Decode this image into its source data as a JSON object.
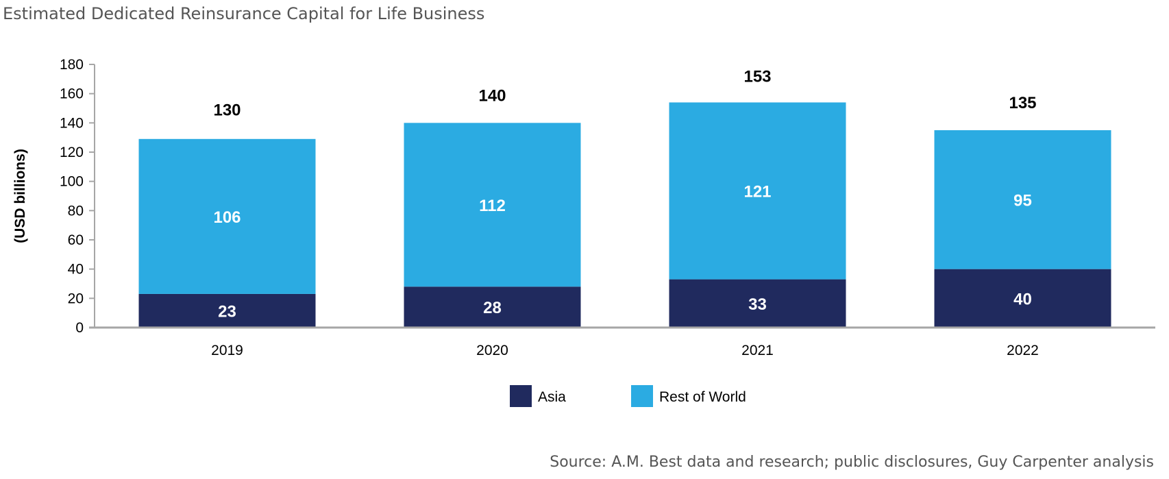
{
  "header": {
    "title": "Estimated Dedicated Reinsurance Capital for Life Business"
  },
  "footer": {
    "source": "Source: A.M. Best data and research; public disclosures, Guy Carpenter analysis"
  },
  "chart_data": {
    "type": "bar",
    "stacked": true,
    "categories": [
      "2019",
      "2020",
      "2021",
      "2022"
    ],
    "series": [
      {
        "name": "Asia",
        "values": [
          23,
          28,
          33,
          40
        ],
        "color": "#202A5E"
      },
      {
        "name": "Rest of World",
        "values": [
          106,
          112,
          121,
          95
        ],
        "color": "#2BABE2"
      }
    ],
    "totals": [
      130,
      140,
      153,
      135
    ],
    "ylabel": "(USD billions)",
    "xlabel": "",
    "ylim": [
      0,
      180
    ],
    "yticks": [
      0,
      20,
      40,
      60,
      80,
      100,
      120,
      140,
      160,
      180
    ],
    "grid": false,
    "legend_position": "bottom"
  }
}
